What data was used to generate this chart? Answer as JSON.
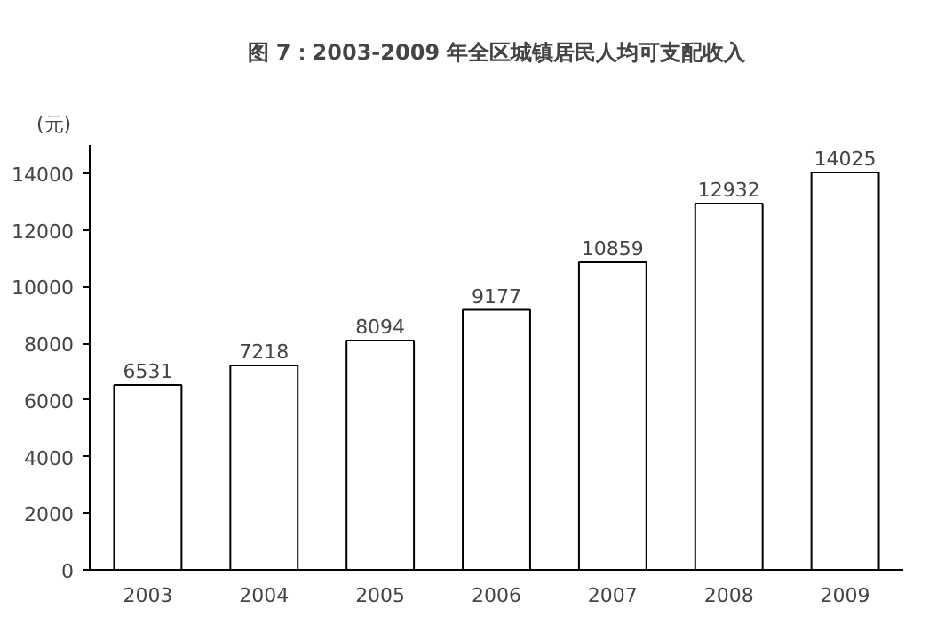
{
  "chart_data": {
    "type": "bar",
    "title": "图 7：2003-2009 年全区城镇居民人均可支配收入",
    "ylabel": "(元)",
    "categories": [
      "2003",
      "2004",
      "2005",
      "2006",
      "2007",
      "2008",
      "2009"
    ],
    "values": [
      6531,
      7218,
      8094,
      9177,
      10859,
      12932,
      14025
    ],
    "color": "#ffffff",
    "ylim": [
      0,
      15000
    ],
    "yticks": [
      0,
      2000,
      4000,
      6000,
      8000,
      10000,
      12000,
      14000
    ],
    "grid": false,
    "data_labels": true
  }
}
